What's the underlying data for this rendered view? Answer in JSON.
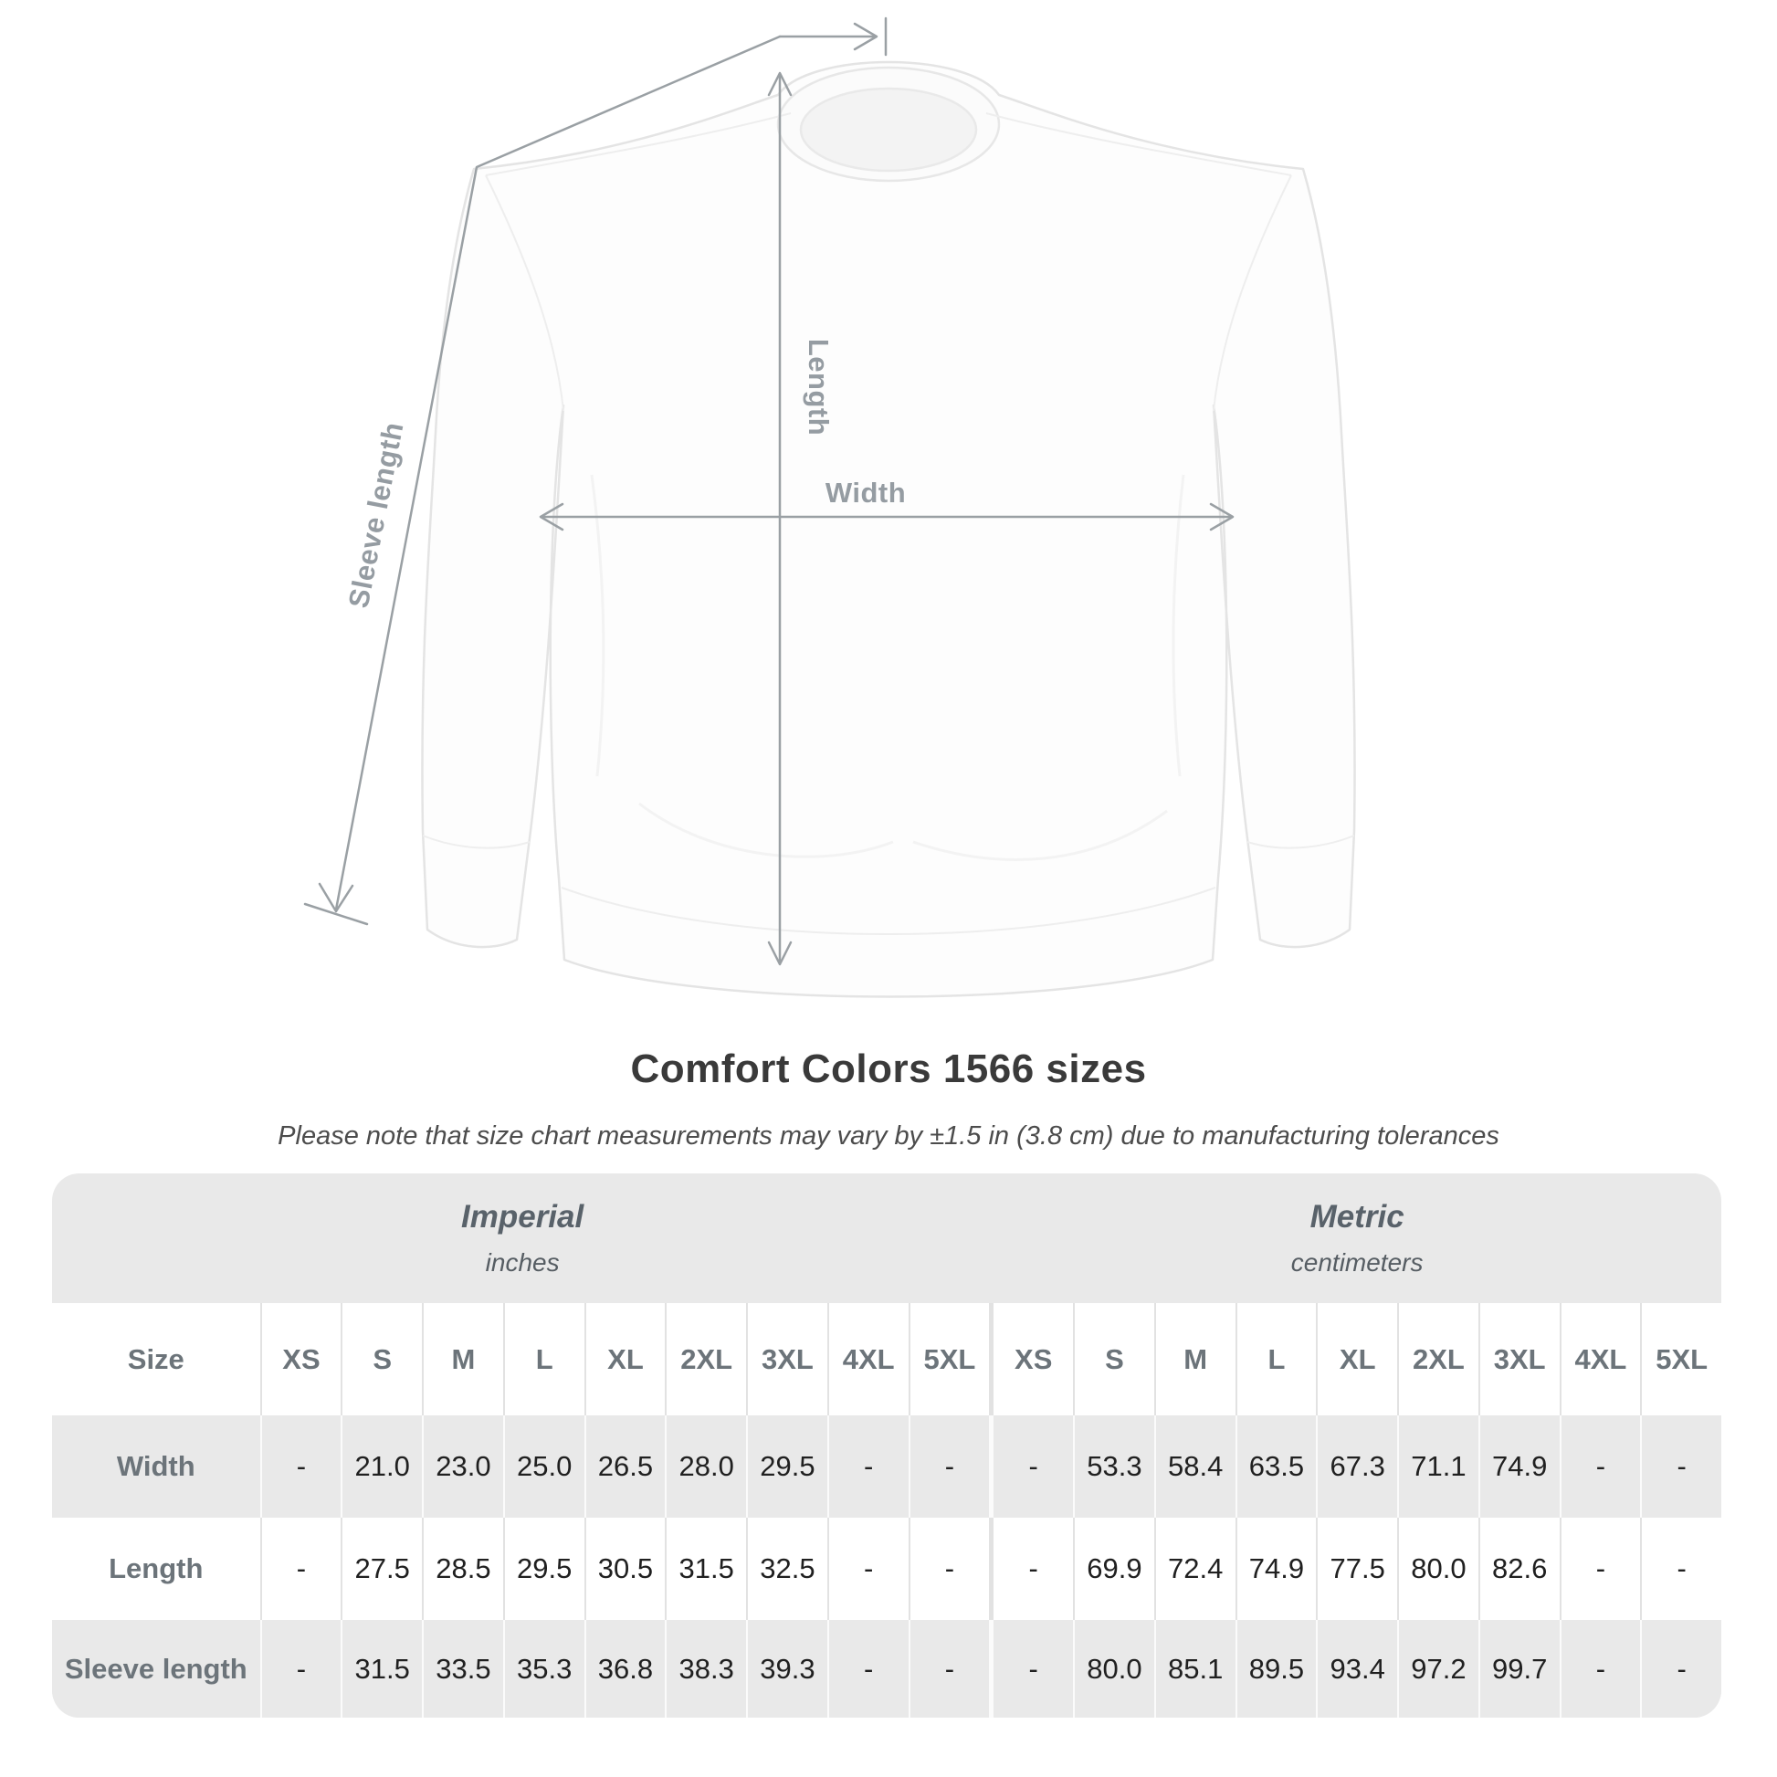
{
  "diagram": {
    "labels": {
      "length": "Length",
      "width": "Width",
      "sleeve_length": "Sleeve length"
    },
    "line_color": "#9aa0a4",
    "label_color": "#959ca2"
  },
  "heading": {
    "title": "Comfort Colors 1566 sizes",
    "subtitle": "Please note that size chart measurements may vary by ±1.5 in (3.8 cm) due to manufacturing tolerances"
  },
  "table": {
    "background": "#e9e9e9",
    "size_label": "Size",
    "unit_groups": [
      {
        "name": "Imperial",
        "unit": "inches"
      },
      {
        "name": "Metric",
        "unit": "centimeters"
      }
    ],
    "sizes": [
      "XS",
      "S",
      "M",
      "L",
      "XL",
      "2XL",
      "3XL",
      "4XL",
      "5XL"
    ],
    "rows": [
      {
        "label": "Width",
        "imperial": [
          "-",
          "21.0",
          "23.0",
          "25.0",
          "26.5",
          "28.0",
          "29.5",
          "-",
          "-"
        ],
        "metric": [
          "-",
          "53.3",
          "58.4",
          "63.5",
          "67.3",
          "71.1",
          "74.9",
          "-",
          "-"
        ]
      },
      {
        "label": "Length",
        "imperial": [
          "-",
          "27.5",
          "28.5",
          "29.5",
          "30.5",
          "31.5",
          "32.5",
          "-",
          "-"
        ],
        "metric": [
          "-",
          "69.9",
          "72.4",
          "74.9",
          "77.5",
          "80.0",
          "82.6",
          "-",
          "-"
        ]
      },
      {
        "label": "Sleeve length",
        "imperial": [
          "-",
          "31.5",
          "33.5",
          "35.3",
          "36.8",
          "38.3",
          "39.3",
          "-",
          "-"
        ],
        "metric": [
          "-",
          "80.0",
          "85.1",
          "89.5",
          "93.4",
          "97.2",
          "99.7",
          "-",
          "-"
        ]
      }
    ]
  },
  "chart_data": {
    "type": "table",
    "title": "Comfort Colors 1566 sizes",
    "note": "Measurements may vary by ±1.5 in (3.8 cm)",
    "columns": [
      "XS",
      "S",
      "M",
      "L",
      "XL",
      "2XL",
      "3XL",
      "4XL",
      "5XL"
    ],
    "imperial_inches": {
      "Width": [
        null,
        21.0,
        23.0,
        25.0,
        26.5,
        28.0,
        29.5,
        null,
        null
      ],
      "Length": [
        null,
        27.5,
        28.5,
        29.5,
        30.5,
        31.5,
        32.5,
        null,
        null
      ],
      "Sleeve length": [
        null,
        31.5,
        33.5,
        35.3,
        36.8,
        38.3,
        39.3,
        null,
        null
      ]
    },
    "metric_centimeters": {
      "Width": [
        null,
        53.3,
        58.4,
        63.5,
        67.3,
        71.1,
        74.9,
        null,
        null
      ],
      "Length": [
        null,
        69.9,
        72.4,
        74.9,
        77.5,
        80.0,
        82.6,
        null,
        null
      ],
      "Sleeve length": [
        null,
        80.0,
        85.1,
        89.5,
        93.4,
        97.2,
        99.7,
        null,
        null
      ]
    }
  }
}
